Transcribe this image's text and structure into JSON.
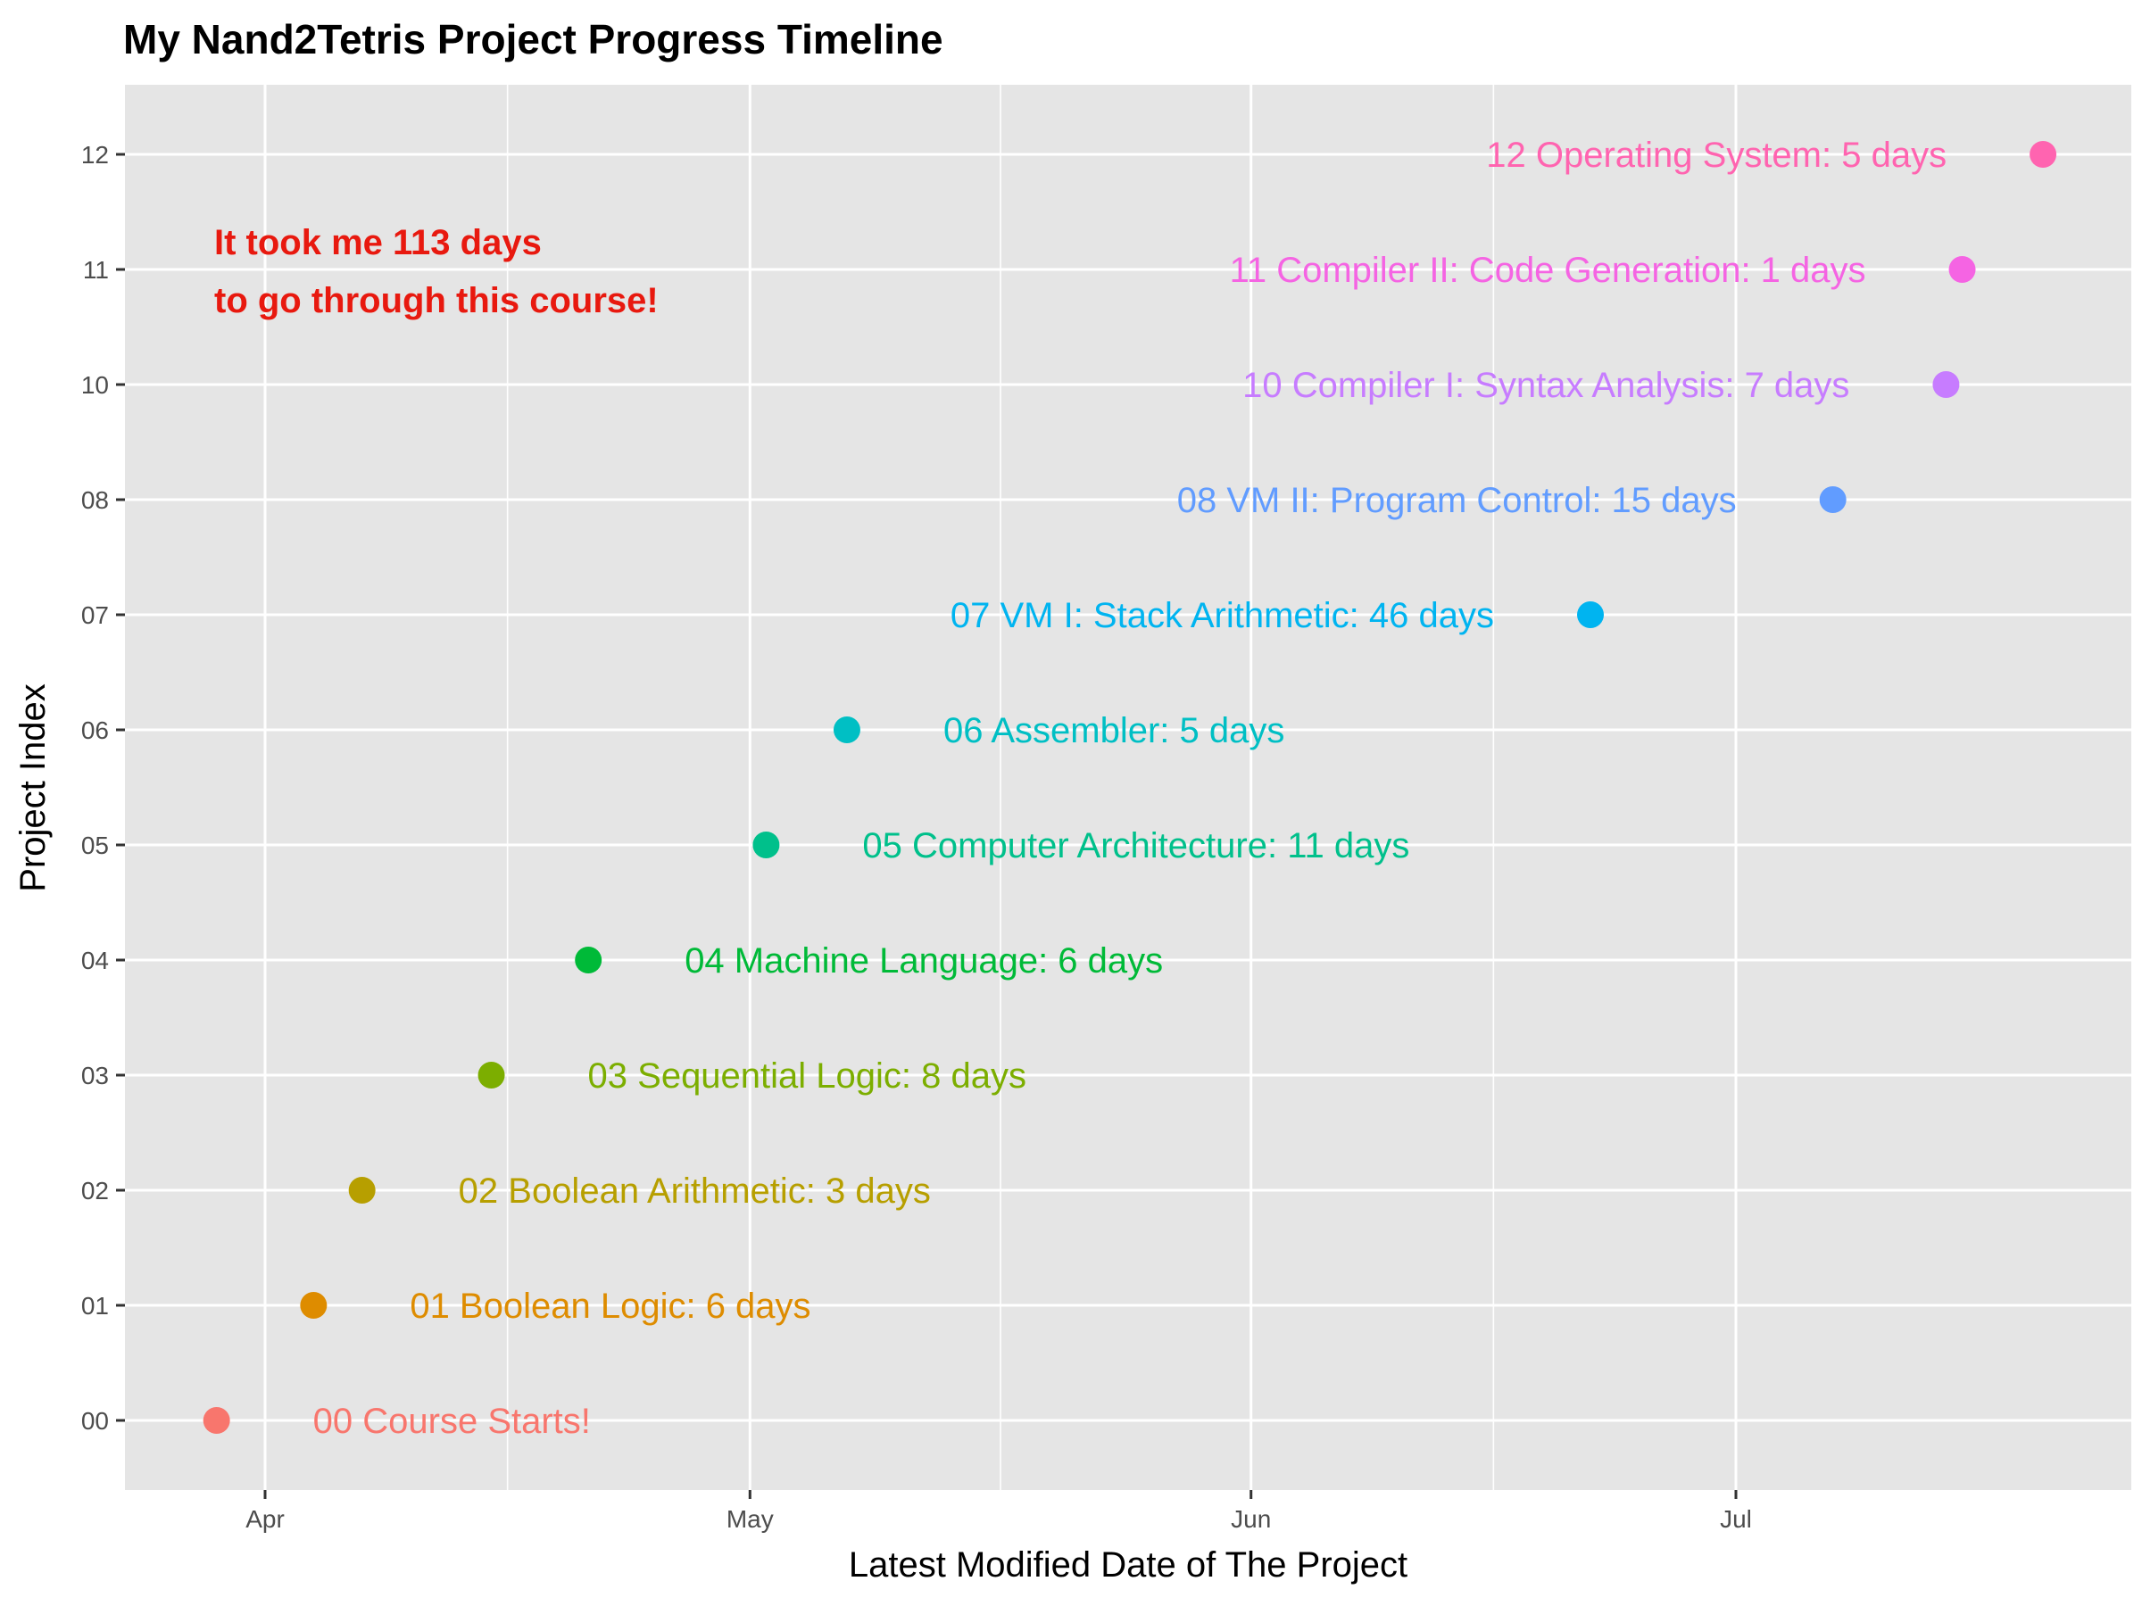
{
  "chart_data": {
    "type": "scatter",
    "title": "My Nand2Tetris Project Progress Timeline",
    "xlabel": "Latest Modified Date of The Project",
    "ylabel": "Project Index",
    "x_ticks": [
      {
        "date": "2019-04-01",
        "label": "Apr"
      },
      {
        "date": "2019-05-01",
        "label": "May"
      },
      {
        "date": "2019-06-01",
        "label": "Jun"
      },
      {
        "date": "2019-07-01",
        "label": "Jul"
      }
    ],
    "y_categories": [
      "00",
      "01",
      "02",
      "03",
      "04",
      "05",
      "06",
      "07",
      "08",
      "10",
      "11",
      "12"
    ],
    "annotation": [
      "It took me 113 days",
      "to go through this course!"
    ],
    "points": [
      {
        "index": "00",
        "date": "2019-03-29",
        "label": "00 Course Starts!",
        "color": "#F8766D",
        "label_side": "right"
      },
      {
        "index": "01",
        "date": "2019-04-04",
        "label": "01 Boolean Logic: 6 days",
        "color": "#DE8C00",
        "label_side": "right"
      },
      {
        "index": "02",
        "date": "2019-04-07",
        "label": "02 Boolean Arithmetic: 3 days",
        "color": "#B79F00",
        "label_side": "right"
      },
      {
        "index": "03",
        "date": "2019-04-15",
        "label": "03 Sequential Logic: 8 days",
        "color": "#7CAE00",
        "label_side": "right"
      },
      {
        "index": "04",
        "date": "2019-04-21",
        "label": "04 Machine Language: 6 days",
        "color": "#00BA38",
        "label_side": "right"
      },
      {
        "index": "05",
        "date": "2019-05-02",
        "label": "05 Computer Architecture: 11 days",
        "color": "#00C08B",
        "label_side": "right"
      },
      {
        "index": "06",
        "date": "2019-05-07",
        "label": "06 Assembler: 5 days",
        "color": "#00BFC4",
        "label_side": "right"
      },
      {
        "index": "07",
        "date": "2019-06-22",
        "label": "07 VM I: Stack Arithmetic: 46 days",
        "color": "#00B4F0",
        "label_side": "left"
      },
      {
        "index": "08",
        "date": "2019-07-07",
        "label": "08 VM II: Program Control: 15 days",
        "color": "#619CFF",
        "label_side": "left"
      },
      {
        "index": "10",
        "date": "2019-07-14",
        "label": "10 Compiler I: Syntax Analysis: 7 days",
        "color": "#C77CFF",
        "label_side": "left"
      },
      {
        "index": "11",
        "date": "2019-07-15",
        "label": "11 Compiler II: Code Generation: 1 days",
        "color": "#F564E3",
        "label_side": "left"
      },
      {
        "index": "12",
        "date": "2019-07-20",
        "label": "12 Operating System: 5 days",
        "color": "#FF64B0",
        "label_side": "left"
      }
    ],
    "grid": true,
    "legend": "none",
    "colors": {
      "panel_background": "#E5E5E5",
      "grid": "#FFFFFF",
      "annotation": "#E8190F"
    }
  }
}
